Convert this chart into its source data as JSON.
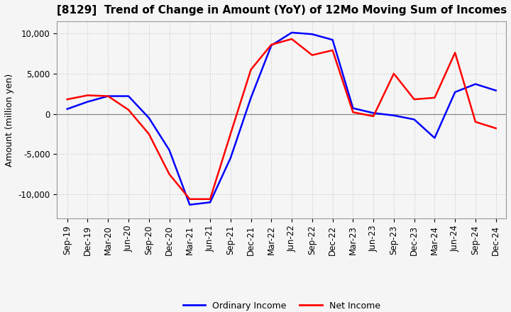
{
  "title": "[8129]  Trend of Change in Amount (YoY) of 12Mo Moving Sum of Incomes",
  "ylabel": "Amount (million yen)",
  "x_labels": [
    "Sep-19",
    "Dec-19",
    "Mar-20",
    "Jun-20",
    "Sep-20",
    "Dec-20",
    "Mar-21",
    "Jun-21",
    "Sep-21",
    "Dec-21",
    "Mar-22",
    "Jun-22",
    "Sep-22",
    "Dec-22",
    "Mar-23",
    "Jun-23",
    "Sep-23",
    "Dec-23",
    "Mar-24",
    "Jun-24",
    "Sep-24",
    "Dec-24"
  ],
  "ordinary_income": [
    600,
    1500,
    2200,
    2200,
    -500,
    -4500,
    -11300,
    -11000,
    -5500,
    2000,
    8500,
    10100,
    9900,
    9200,
    700,
    100,
    -200,
    -700,
    -3000,
    2700,
    3700,
    2900
  ],
  "net_income": [
    1800,
    2300,
    2200,
    500,
    -2500,
    -7500,
    -10600,
    -10600,
    -2500,
    5500,
    8600,
    9300,
    7300,
    7900,
    200,
    -300,
    5000,
    1800,
    2000,
    7600,
    -1000,
    -1800
  ],
  "ordinary_color": "#0000ff",
  "net_color": "#ff0000",
  "ylim": [
    -13000,
    11500
  ],
  "yticks": [
    -10000,
    -5000,
    0,
    5000,
    10000
  ],
  "background_color": "#f5f5f5",
  "plot_bg_color": "#f5f5f5",
  "grid_color": "#bbbbbb",
  "title_fontsize": 11,
  "axis_fontsize": 8.5,
  "legend_fontsize": 9
}
